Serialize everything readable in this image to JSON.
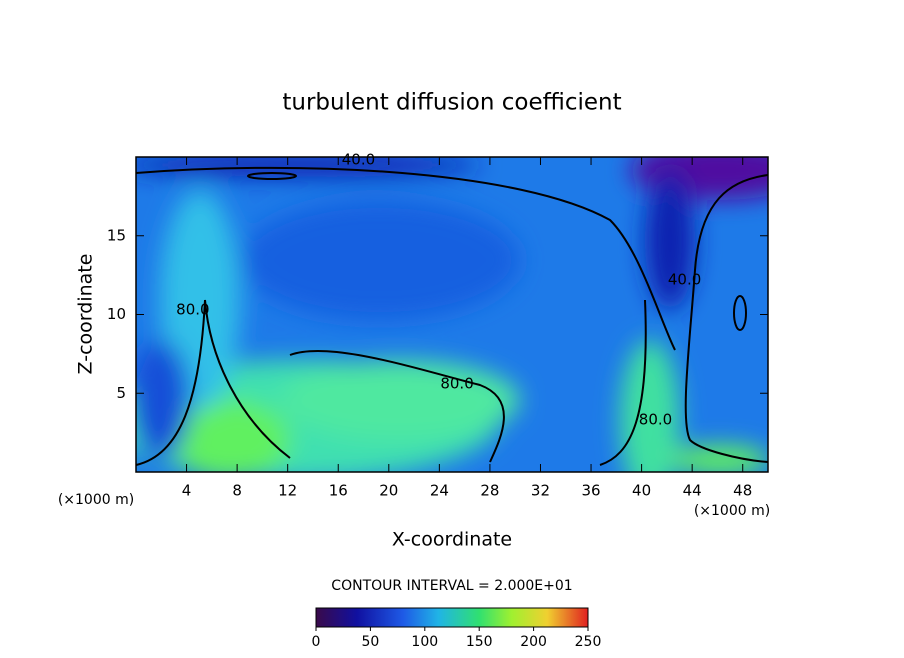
{
  "chart_data": {
    "type": "contour",
    "title": "turbulent diffusion coefficient",
    "x_label": "X-coordinate",
    "y_label": "Z-coordinate",
    "x_unit": "(×1000 m)",
    "y_unit": "(×1000 m)",
    "xlim": [
      0,
      50
    ],
    "ylim": [
      0,
      20
    ],
    "xticks": [
      4,
      8,
      12,
      16,
      20,
      24,
      28,
      32,
      36,
      40,
      44,
      48
    ],
    "yticks": [
      5,
      10,
      15
    ],
    "contour_labels": [
      {
        "value": 40,
        "label": "40.0",
        "x": 17.6,
        "y": 19.8
      },
      {
        "value": 40,
        "label": "40.0",
        "x": 43.4,
        "y": 12.2
      },
      {
        "value": 80,
        "label": "80.0",
        "x": 4.5,
        "y": 10.3
      },
      {
        "value": 80,
        "label": "80.0",
        "x": 25.4,
        "y": 5.6
      },
      {
        "value": 80,
        "label": "80.0",
        "x": 41.1,
        "y": 3.3
      }
    ],
    "contour_interval": "CONTOUR INTERVAL = 2.000E+01",
    "colorbar": {
      "lim": [
        0,
        250
      ],
      "ticks": [
        0,
        50,
        100,
        150,
        200,
        250
      ]
    }
  }
}
